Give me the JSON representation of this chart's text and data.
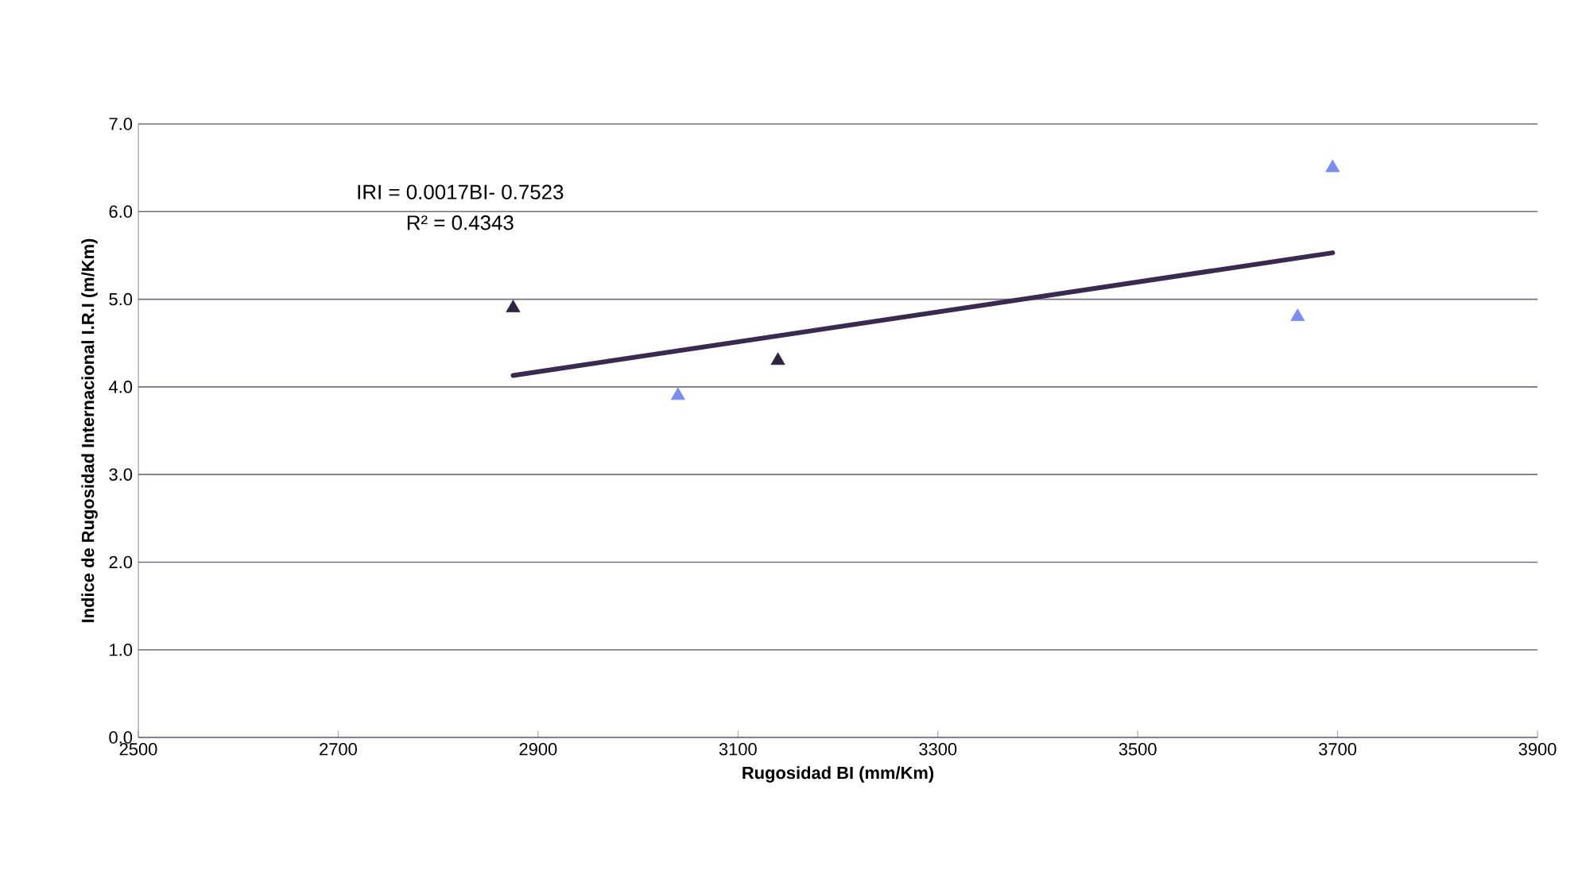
{
  "chart_data": {
    "type": "scatter",
    "xlabel": "Rugosidad BI (mm/Km)",
    "ylabel": "Indice de Rugosidad Internacional I.R.I  (m/Km)",
    "xlim": [
      2500,
      3900
    ],
    "xticks": [
      2500,
      2700,
      2900,
      3100,
      3300,
      3500,
      3700,
      3900
    ],
    "ylim": [
      0,
      7
    ],
    "yticks": [
      {
        "value": 0,
        "label": "0.0"
      },
      {
        "value": 1,
        "label": "1.0"
      },
      {
        "value": 2,
        "label": "2.0"
      },
      {
        "value": 3,
        "label": "3.0"
      },
      {
        "value": 4,
        "label": "4.0"
      },
      {
        "value": 5,
        "label": "5.0"
      },
      {
        "value": 6,
        "label": "6.0"
      },
      {
        "value": 7,
        "label": "7.0"
      }
    ],
    "grid": "y",
    "marker": "triangle",
    "series": [
      {
        "x": [
          2875,
          3040,
          3140,
          3660,
          3695
        ],
        "values": [
          4.9,
          3.9,
          4.3,
          4.8,
          6.5
        ],
        "colors": [
          "#2e2440",
          "#7b8ef0",
          "#2e2440",
          "#7b8ef0",
          "#7b8ef0"
        ]
      },
      {
        "type": "line",
        "x": [
          2875,
          3695
        ],
        "values": [
          4.13,
          5.53
        ],
        "color": "#3a2a50",
        "line_style": "solid",
        "marker": "none"
      }
    ],
    "annotations": [
      "IRI = 0.0017BI- 0.7523",
      "R² = 0.4343"
    ]
  }
}
